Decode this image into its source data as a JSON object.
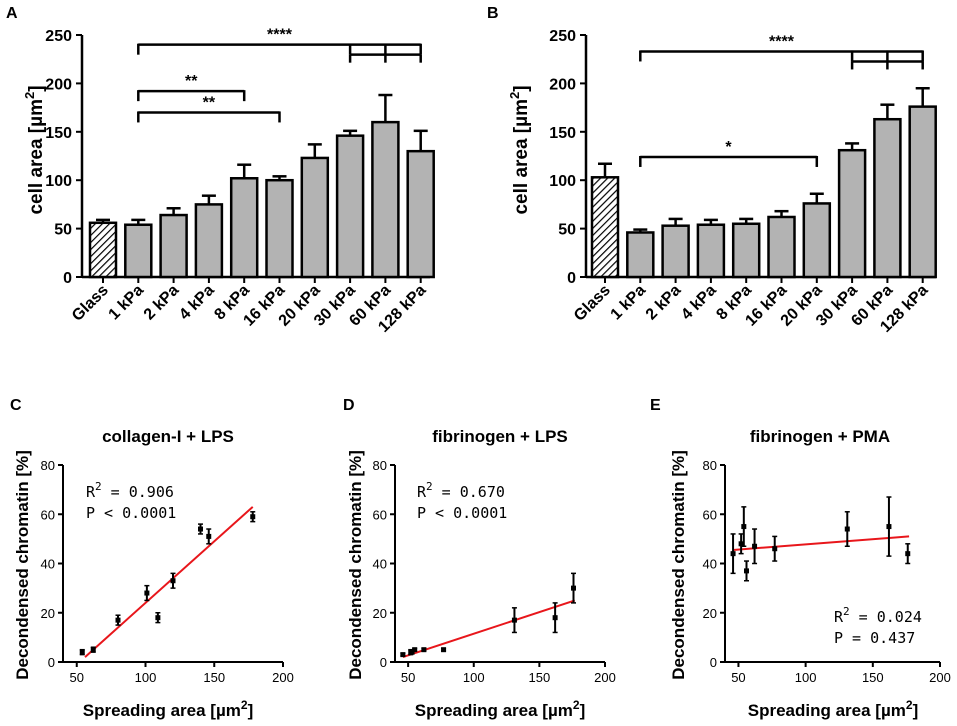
{
  "chart_data": [
    {
      "panel": "A",
      "type": "bar",
      "ylabel": "cell area [µm",
      "ylabel_sup": "2",
      "ylabel_close": "]",
      "ylim": [
        0,
        250
      ],
      "yticks": [
        "0",
        "50",
        "100",
        "150",
        "200",
        "250"
      ],
      "categories": [
        "Glass",
        "1 kPa",
        "2 kPa",
        "4 kPa",
        "8 kPa",
        "16 kPa",
        "20 kPa",
        "30 kPa",
        "60 kPa",
        "128 kPa"
      ],
      "values": [
        56,
        54,
        64,
        75,
        102,
        100,
        123,
        146,
        160,
        130
      ],
      "errors": [
        3,
        5,
        7,
        9,
        14,
        4,
        14,
        5,
        28,
        21
      ],
      "hatched": [
        true,
        false,
        false,
        false,
        false,
        false,
        false,
        false,
        false,
        false
      ],
      "brackets": [
        {
          "label": "****",
          "from": 1,
          "to": [
            7,
            8,
            9
          ],
          "y": 240
        },
        {
          "label": "**",
          "from": 1,
          "to": [
            4
          ],
          "y": 192
        },
        {
          "label": "**",
          "from": 1,
          "to": [
            5
          ],
          "y": 170
        }
      ]
    },
    {
      "panel": "B",
      "type": "bar",
      "ylabel": "cell area [µm",
      "ylabel_sup": "2",
      "ylabel_close": "]",
      "ylim": [
        0,
        250
      ],
      "yticks": [
        "0",
        "50",
        "100",
        "150",
        "200",
        "250"
      ],
      "categories": [
        "Glass",
        "1 kPa",
        "2 kPa",
        "4 kPa",
        "8 kPa",
        "16 kPa",
        "20 kPa",
        "30 kPa",
        "60 kPa",
        "128 kPa"
      ],
      "values": [
        103,
        46,
        53,
        54,
        55,
        62,
        76,
        131,
        163,
        176
      ],
      "errors": [
        14,
        3,
        7,
        5,
        5,
        6,
        10,
        7,
        15,
        19
      ],
      "hatched": [
        true,
        false,
        false,
        false,
        false,
        false,
        false,
        false,
        false,
        false
      ],
      "brackets": [
        {
          "label": "****",
          "from": 1,
          "to": [
            7,
            8,
            9
          ],
          "y": 233
        },
        {
          "label": "*",
          "from": 1,
          "to": [
            6
          ],
          "y": 124
        }
      ]
    },
    {
      "panel": "C",
      "type": "scatter",
      "title": "collagen-I + LPS",
      "xlabel": "Spreading area [µm",
      "xlabel_sup": "2",
      "xlabel_close": "]",
      "ylabel": "Decondensed chromatin [%]",
      "xlim": [
        40,
        200
      ],
      "ylim": [
        0,
        80
      ],
      "xticks": [
        "50",
        "100",
        "150",
        "200"
      ],
      "yticks": [
        "0",
        "20",
        "40",
        "60",
        "80"
      ],
      "stat_r2_prefix": "R",
      "stat_r2_sup": "2",
      "stat_r2_value": " = 0.906",
      "stat_p": "P < 0.0001",
      "points": [
        {
          "x": 54,
          "y": 4,
          "err": 1
        },
        {
          "x": 62,
          "y": 5,
          "err": 1
        },
        {
          "x": 80,
          "y": 17,
          "err": 2
        },
        {
          "x": 101,
          "y": 28,
          "err": 3
        },
        {
          "x": 109,
          "y": 18,
          "err": 2
        },
        {
          "x": 120,
          "y": 33,
          "err": 3
        },
        {
          "x": 140,
          "y": 54,
          "err": 2
        },
        {
          "x": 146,
          "y": 51,
          "err": 3
        },
        {
          "x": 178,
          "y": 59,
          "err": 2
        }
      ],
      "fit": {
        "x": [
          56,
          178
        ],
        "y": [
          2,
          63
        ]
      }
    },
    {
      "panel": "D",
      "type": "scatter",
      "title": "fibrinogen + LPS",
      "xlabel": "Spreading area [µm",
      "xlabel_sup": "2",
      "xlabel_close": "]",
      "ylabel": "Decondensed chromatin [%]",
      "xlim": [
        40,
        200
      ],
      "ylim": [
        0,
        80
      ],
      "xticks": [
        "50",
        "100",
        "150",
        "200"
      ],
      "yticks": [
        "0",
        "20",
        "40",
        "60",
        "80"
      ],
      "stat_r2_prefix": "R",
      "stat_r2_sup": "2",
      "stat_r2_value": " = 0.670",
      "stat_p": "P < 0.0001",
      "points": [
        {
          "x": 46,
          "y": 3,
          "err": 0.5
        },
        {
          "x": 52,
          "y": 4,
          "err": 1
        },
        {
          "x": 53,
          "y": 4,
          "err": 0.5
        },
        {
          "x": 55,
          "y": 5,
          "err": 0.5
        },
        {
          "x": 62,
          "y": 5,
          "err": 0.5
        },
        {
          "x": 77,
          "y": 5,
          "err": 0.5
        },
        {
          "x": 131,
          "y": 17,
          "err": 5
        },
        {
          "x": 162,
          "y": 18,
          "err": 6
        },
        {
          "x": 176,
          "y": 30,
          "err": 6
        }
      ],
      "fit": {
        "x": [
          46,
          177
        ],
        "y": [
          2,
          25
        ]
      }
    },
    {
      "panel": "E",
      "type": "scatter",
      "title": "fibrinogen + PMA",
      "xlabel": "Spreading area [µm",
      "xlabel_sup": "2",
      "xlabel_close": "]",
      "ylabel": "Decondensed chromatin [%]",
      "xlim": [
        40,
        200
      ],
      "ylim": [
        0,
        80
      ],
      "xticks": [
        "50",
        "100",
        "150",
        "200"
      ],
      "yticks": [
        "0",
        "20",
        "40",
        "60",
        "80"
      ],
      "stat_r2_prefix": "R",
      "stat_r2_sup": "2",
      "stat_r2_value": " = 0.024",
      "stat_p": "P = 0.437",
      "points": [
        {
          "x": 46,
          "y": 44,
          "err": 8
        },
        {
          "x": 52,
          "y": 48,
          "err": 4
        },
        {
          "x": 54,
          "y": 55,
          "err": 8
        },
        {
          "x": 56,
          "y": 37,
          "err": 4
        },
        {
          "x": 62,
          "y": 47,
          "err": 7
        },
        {
          "x": 77,
          "y": 46,
          "err": 5
        },
        {
          "x": 131,
          "y": 54,
          "err": 7
        },
        {
          "x": 162,
          "y": 55,
          "err": 12
        },
        {
          "x": 176,
          "y": 44,
          "err": 4
        }
      ],
      "fit": {
        "x": [
          46,
          177
        ],
        "y": [
          45.5,
          51
        ]
      }
    }
  ],
  "panel_labels": [
    "A",
    "B",
    "C",
    "D",
    "E"
  ]
}
